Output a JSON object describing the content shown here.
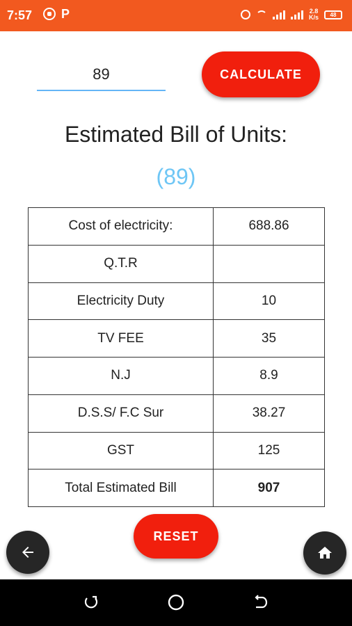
{
  "status_bar": {
    "time": "7:57",
    "speed_value": "2.8",
    "speed_unit": "K/s",
    "battery": "48",
    "icons": [
      "whatsapp-icon",
      "p-icon",
      "alarm-icon",
      "wifi-icon",
      "signal-icon",
      "battery-icon"
    ]
  },
  "input": {
    "value": "89",
    "placeholder": ""
  },
  "buttons": {
    "calculate": "CALCULATE",
    "reset": "RESET"
  },
  "heading": "Estimated Bill of Units:",
  "units_display": "(89)",
  "table": {
    "rows": [
      {
        "label": "Cost of electricity:",
        "value": "688.86"
      },
      {
        "label": "Q.T.R",
        "value": ""
      },
      {
        "label": "Electricity Duty",
        "value": "10"
      },
      {
        "label": "TV FEE",
        "value": "35"
      },
      {
        "label": "N.J",
        "value": "8.9"
      },
      {
        "label": "D.S.S/ F.C Sur",
        "value": "38.27"
      },
      {
        "label": "GST",
        "value": "125"
      },
      {
        "label": "Total Estimated Bill",
        "value": "907"
      }
    ]
  },
  "fabs": {
    "back_icon": "arrow-left-icon",
    "home_icon": "home-icon"
  },
  "colors": {
    "status_bar": "#f2591f",
    "button": "#f11f0d",
    "units_display": "#6ec6f5",
    "total_value": "#1e27e0",
    "input_underline": "#64b5f6"
  }
}
